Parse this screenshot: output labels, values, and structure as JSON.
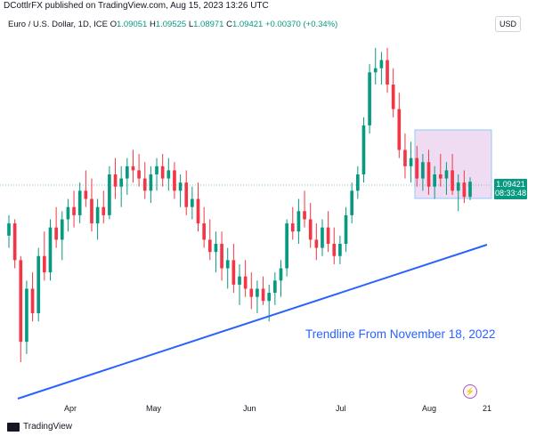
{
  "header": {
    "published": "DCottlrFX published on TradingView.com, Aug 15, 2023 13:26 UTC"
  },
  "legend": {
    "symbol": "Euro / U.S. Dollar, 1D, ICE",
    "o_label": "O",
    "o_value": "1.09051",
    "h_label": "H",
    "h_value": "1.09525",
    "l_label": "L",
    "l_value": "1.08971",
    "c_label": "C",
    "c_value": "1.09421",
    "change": "+0.00370 (+0.34%)"
  },
  "currency_button": "USD",
  "price_tag": {
    "price": "1.09421",
    "countdown": "08:33:48"
  },
  "x_axis": {
    "labels": [
      "Apr",
      "May",
      "Jun",
      "Jul",
      "Aug",
      "21"
    ]
  },
  "annotation": "Trendline From November 18, 2022",
  "footer": {
    "brand": "TradingView"
  },
  "colors": {
    "up": "#089981",
    "down": "#f23645",
    "trendline": "#2962ff",
    "highlight": "#e1bee7"
  },
  "chart_data": {
    "type": "candlestick",
    "period": "1D",
    "symbol": "EURUSD",
    "candles": [
      [
        1.081,
        1.086,
        1.078,
        1.084
      ],
      [
        1.084,
        1.085,
        1.073,
        1.075
      ],
      [
        1.075,
        1.076,
        1.05,
        1.055
      ],
      [
        1.055,
        1.07,
        1.052,
        1.068
      ],
      [
        1.068,
        1.072,
        1.06,
        1.062
      ],
      [
        1.062,
        1.078,
        1.06,
        1.076
      ],
      [
        1.076,
        1.082,
        1.07,
        1.072
      ],
      [
        1.072,
        1.085,
        1.07,
        1.083
      ],
      [
        1.083,
        1.088,
        1.078,
        1.08
      ],
      [
        1.08,
        1.087,
        1.075,
        1.085
      ],
      [
        1.085,
        1.09,
        1.082,
        1.088
      ],
      [
        1.088,
        1.092,
        1.083,
        1.086
      ],
      [
        1.086,
        1.094,
        1.084,
        1.092
      ],
      [
        1.092,
        1.097,
        1.088,
        1.09
      ],
      [
        1.09,
        1.095,
        1.082,
        1.084
      ],
      [
        1.084,
        1.09,
        1.08,
        1.088
      ],
      [
        1.088,
        1.092,
        1.084,
        1.086
      ],
      [
        1.086,
        1.098,
        1.085,
        1.096
      ],
      [
        1.096,
        1.1,
        1.09,
        1.093
      ],
      [
        1.093,
        1.098,
        1.088,
        1.095
      ],
      [
        1.095,
        1.1,
        1.091,
        1.098
      ],
      [
        1.098,
        1.102,
        1.094,
        1.097
      ],
      [
        1.097,
        1.101,
        1.093,
        1.095
      ],
      [
        1.095,
        1.099,
        1.09,
        1.092
      ],
      [
        1.092,
        1.098,
        1.089,
        1.096
      ],
      [
        1.096,
        1.1,
        1.092,
        1.098
      ],
      [
        1.098,
        1.101,
        1.093,
        1.095
      ],
      [
        1.095,
        1.1,
        1.092,
        1.097
      ],
      [
        1.097,
        1.099,
        1.09,
        1.092
      ],
      [
        1.092,
        1.096,
        1.088,
        1.094
      ],
      [
        1.094,
        1.097,
        1.086,
        1.088
      ],
      [
        1.088,
        1.093,
        1.085,
        1.09
      ],
      [
        1.09,
        1.094,
        1.082,
        1.084
      ],
      [
        1.084,
        1.088,
        1.078,
        1.08
      ],
      [
        1.08,
        1.085,
        1.075,
        1.077
      ],
      [
        1.077,
        1.082,
        1.072,
        1.079
      ],
      [
        1.079,
        1.082,
        1.07,
        1.073
      ],
      [
        1.073,
        1.078,
        1.068,
        1.075
      ],
      [
        1.075,
        1.079,
        1.067,
        1.069
      ],
      [
        1.069,
        1.074,
        1.064,
        1.071
      ],
      [
        1.071,
        1.075,
        1.066,
        1.068
      ],
      [
        1.068,
        1.072,
        1.063,
        1.066
      ],
      [
        1.066,
        1.07,
        1.062,
        1.068
      ],
      [
        1.068,
        1.071,
        1.064,
        1.065
      ],
      [
        1.065,
        1.069,
        1.06,
        1.067
      ],
      [
        1.067,
        1.072,
        1.064,
        1.07
      ],
      [
        1.07,
        1.075,
        1.066,
        1.073
      ],
      [
        1.073,
        1.085,
        1.071,
        1.084
      ],
      [
        1.084,
        1.088,
        1.08,
        1.082
      ],
      [
        1.082,
        1.09,
        1.079,
        1.087
      ],
      [
        1.087,
        1.092,
        1.083,
        1.085
      ],
      [
        1.085,
        1.089,
        1.078,
        1.08
      ],
      [
        1.08,
        1.084,
        1.075,
        1.078
      ],
      [
        1.078,
        1.085,
        1.076,
        1.083
      ],
      [
        1.083,
        1.087,
        1.077,
        1.079
      ],
      [
        1.079,
        1.083,
        1.074,
        1.076
      ],
      [
        1.076,
        1.081,
        1.074,
        1.079
      ],
      [
        1.079,
        1.088,
        1.077,
        1.086
      ],
      [
        1.086,
        1.094,
        1.084,
        1.092
      ],
      [
        1.092,
        1.098,
        1.09,
        1.096
      ],
      [
        1.096,
        1.11,
        1.094,
        1.108
      ],
      [
        1.108,
        1.123,
        1.106,
        1.121
      ],
      [
        1.121,
        1.127,
        1.118,
        1.122
      ],
      [
        1.122,
        1.126,
        1.118,
        1.124
      ],
      [
        1.124,
        1.127,
        1.116,
        1.118
      ],
      [
        1.118,
        1.122,
        1.11,
        1.112
      ],
      [
        1.112,
        1.116,
        1.1,
        1.102
      ],
      [
        1.102,
        1.106,
        1.095,
        1.098
      ],
      [
        1.098,
        1.104,
        1.094,
        1.1
      ],
      [
        1.1,
        1.103,
        1.093,
        1.095
      ],
      [
        1.095,
        1.101,
        1.092,
        1.099
      ],
      [
        1.099,
        1.102,
        1.091,
        1.093
      ],
      [
        1.093,
        1.098,
        1.09,
        1.096
      ],
      [
        1.096,
        1.101,
        1.093,
        1.095
      ],
      [
        1.095,
        1.099,
        1.091,
        1.097
      ],
      [
        1.097,
        1.101,
        1.091,
        1.092
      ],
      [
        1.092,
        1.096,
        1.087,
        1.094
      ],
      [
        1.094,
        1.097,
        1.089,
        1.0905
      ],
      [
        1.0905,
        1.0953,
        1.0897,
        1.0942
      ]
    ]
  }
}
